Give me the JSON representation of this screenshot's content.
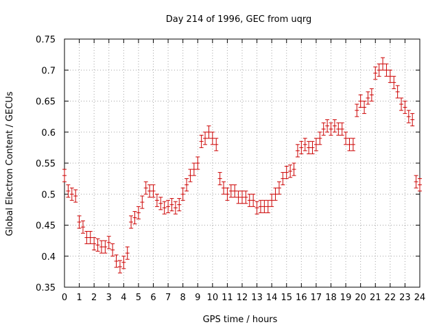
{
  "chart_data": {
    "type": "scatter",
    "title": "Day 214 of 1996, GEC from uqrg",
    "xlabel": "GPS time / hours",
    "ylabel": "Global Electron Content / GECUs",
    "xlim": [
      0,
      24
    ],
    "ylim": [
      0.35,
      0.75
    ],
    "xticks": [
      0,
      1,
      2,
      3,
      4,
      5,
      6,
      7,
      8,
      9,
      10,
      11,
      12,
      13,
      14,
      15,
      16,
      17,
      18,
      19,
      20,
      21,
      22,
      23,
      24
    ],
    "yticks": [
      0.35,
      0.4,
      0.45,
      0.5,
      0.55,
      0.6,
      0.65,
      0.7,
      0.75
    ],
    "grid": true,
    "legend": "none",
    "marker_color": "#cc0000",
    "error": 0.01,
    "series": [
      {
        "x": [
          0.0,
          0.25,
          0.5,
          0.75,
          1.0,
          1.25,
          1.5,
          1.75,
          2.0,
          2.25,
          2.5,
          2.75,
          3.0,
          3.25,
          3.5,
          3.75,
          4.0,
          4.25,
          4.5,
          4.75,
          5.0,
          5.25,
          5.5,
          5.75,
          6.0,
          6.25,
          6.5,
          6.75,
          7.0,
          7.25,
          7.5,
          7.75,
          8.0,
          8.25,
          8.5,
          8.75,
          9.0,
          9.25,
          9.5,
          9.75,
          10.0,
          10.25,
          10.5,
          10.75,
          11.0,
          11.25,
          11.5,
          11.75,
          12.0,
          12.25,
          12.5,
          12.75,
          13.0,
          13.25,
          13.5,
          13.75,
          14.0,
          14.25,
          14.5,
          14.75,
          15.0,
          15.25,
          15.5,
          15.75,
          16.0,
          16.25,
          16.5,
          16.75,
          17.0,
          17.25,
          17.5,
          17.75,
          18.0,
          18.25,
          18.5,
          18.75,
          19.0,
          19.25,
          19.5,
          19.75,
          20.0,
          20.25,
          20.5,
          20.75,
          21.0,
          21.25,
          21.5,
          21.75,
          22.0,
          22.25,
          22.5,
          22.75,
          23.0,
          23.25,
          23.5,
          23.75,
          24.0
        ],
        "y": [
          0.53,
          0.505,
          0.5,
          0.497,
          0.455,
          0.447,
          0.43,
          0.43,
          0.42,
          0.418,
          0.415,
          0.415,
          0.422,
          0.41,
          0.392,
          0.383,
          0.39,
          0.405,
          0.455,
          0.462,
          0.47,
          0.487,
          0.51,
          0.505,
          0.505,
          0.49,
          0.485,
          0.478,
          0.48,
          0.483,
          0.478,
          0.483,
          0.5,
          0.515,
          0.53,
          0.54,
          0.55,
          0.585,
          0.59,
          0.6,
          0.59,
          0.58,
          0.525,
          0.51,
          0.5,
          0.505,
          0.505,
          0.495,
          0.495,
          0.495,
          0.49,
          0.49,
          0.478,
          0.48,
          0.48,
          0.48,
          0.49,
          0.5,
          0.51,
          0.525,
          0.535,
          0.537,
          0.54,
          0.57,
          0.575,
          0.58,
          0.575,
          0.575,
          0.58,
          0.59,
          0.605,
          0.61,
          0.605,
          0.61,
          0.605,
          0.605,
          0.59,
          0.58,
          0.58,
          0.635,
          0.65,
          0.64,
          0.655,
          0.66,
          0.695,
          0.7,
          0.71,
          0.7,
          0.69,
          0.68,
          0.665,
          0.645,
          0.64,
          0.625,
          0.62,
          0.52,
          0.515
        ]
      }
    ]
  }
}
